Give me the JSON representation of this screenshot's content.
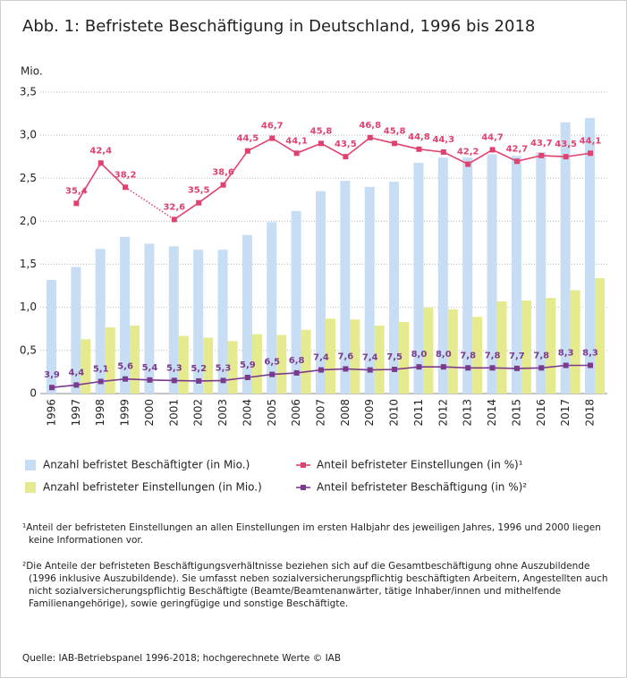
{
  "chart_data": {
    "type": "bar",
    "title": "Abb. 1: Befristete Beschäftigung in Deutschland, 1996 bis 2018",
    "y_label": "Mio.",
    "categories": [
      "1996",
      "1997",
      "1998",
      "1999",
      "2000",
      "2001",
      "2002",
      "2003",
      "2004",
      "2005",
      "2006",
      "2007",
      "2008",
      "2009",
      "2010",
      "2011",
      "2012",
      "2013",
      "2014",
      "2015",
      "2016",
      "2017",
      "2018"
    ],
    "ylim": [
      0,
      3.5
    ],
    "yticks": [
      0,
      {
        "value": 0.5,
        "label": "0,5"
      },
      {
        "value": 1,
        "label": "1,0"
      },
      {
        "value": 1.5,
        "label": "1,5"
      },
      {
        "value": 2,
        "label": "2,0"
      },
      {
        "value": 2.5,
        "label": "2,5"
      },
      {
        "value": 3,
        "label": "3,0"
      },
      {
        "value": 3.5,
        "label": "3,5"
      }
    ],
    "grid": true,
    "series": [
      {
        "name": "Anzahl befristet Beschäftigter (in Mio.)",
        "type": "bar",
        "color": "#c6ddf3",
        "values": [
          1.32,
          1.47,
          1.68,
          1.82,
          1.74,
          1.71,
          1.67,
          1.67,
          1.84,
          1.99,
          2.12,
          2.35,
          2.47,
          2.4,
          2.46,
          2.68,
          2.74,
          2.74,
          2.78,
          2.76,
          2.8,
          3.15,
          3.2
        ]
      },
      {
        "name": "Anzahl befristeter Einstellungen (in Mio.)",
        "type": "bar",
        "color": "#e5ea8e",
        "values": [
          null,
          0.63,
          0.77,
          0.79,
          null,
          0.67,
          0.65,
          0.61,
          0.69,
          0.68,
          0.74,
          0.87,
          0.86,
          0.79,
          0.83,
          1.0,
          0.98,
          0.89,
          1.07,
          1.08,
          1.11,
          1.2,
          1.34
        ]
      },
      {
        "name": "Anteil befristeter Einstellungen (in %)¹",
        "type": "line",
        "color": "#e0426f",
        "gap_style": "dotted",
        "ylim": [
          2.4,
          54.7
        ],
        "values": [
          null,
          35.4,
          42.4,
          38.2,
          null,
          32.6,
          35.5,
          38.6,
          44.5,
          46.7,
          44.1,
          45.8,
          43.5,
          46.8,
          45.8,
          44.8,
          44.3,
          42.2,
          44.7,
          42.7,
          43.7,
          43.5,
          44.1
        ],
        "value_labels": [
          null,
          "35,4",
          "42,4",
          "38,2",
          null,
          "32,6",
          "35,5",
          "38,6",
          "44,5",
          "46,7",
          "44,1",
          "45,8",
          "43,5",
          "46,8",
          "45,8",
          "44,8",
          "44,3",
          "42,2",
          "44,7",
          "42,7",
          "43,7",
          "43,5",
          "44,1"
        ]
      },
      {
        "name": "Anteil befristeter Beschäftigung (in %)²",
        "type": "line",
        "color": "#7b3b8c",
        "ylim": [
          2.7,
          62.6
        ],
        "values": [
          3.9,
          4.4,
          5.1,
          5.6,
          5.4,
          5.3,
          5.2,
          5.3,
          5.9,
          6.5,
          6.8,
          7.4,
          7.6,
          7.4,
          7.5,
          8.0,
          8.0,
          7.8,
          7.8,
          7.7,
          7.8,
          8.3,
          8.3
        ],
        "value_labels": [
          "3,9",
          "4,4",
          "5,1",
          "5,6",
          "5,4",
          "5,3",
          "5,2",
          "5,3",
          "5,9",
          "6,5",
          "6,8",
          "7,4",
          "7,6",
          "7,4",
          "7,5",
          "8,0",
          "8,0",
          "7,8",
          "7,8",
          "7,7",
          "7,8",
          "8,3",
          "8,3"
        ]
      }
    ]
  },
  "footnotes": [
    "¹Anteil der befristeten Einstellungen an allen Einstellungen im ersten Halbjahr des jeweiligen Jahres, 1996 und 2000 liegen keine Informationen vor.",
    "²Die Anteile der befristeten Beschäftigungsverhältnisse beziehen sich auf die Gesamtbeschäftigung ohne Auszubildende (1996 inklusive Auszubildende). Sie umfasst neben sozialversicherungspflichtig beschäftigten Arbeitern, Angestellten auch nicht sozialversicherungspflichtig Beschäftigte (Beamte/Beamtenanwärter, tätige Inhaber/innen und mithelfende Familienangehörige), sowie geringfügige und sonstige Beschäftigte."
  ],
  "source": "Quelle: IAB-Betriebspanel 1996-2018; hochgerechnete Werte © IAB"
}
